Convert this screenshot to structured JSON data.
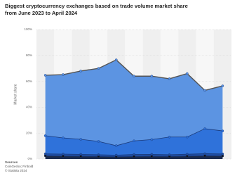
{
  "chart_data": {
    "type": "stacked-area",
    "title": "Biggest cryptocurrency exchanges based on trade volume market share from June 2023 to April 2024",
    "y_label": "Market share",
    "categories": [
      null,
      null,
      null,
      null,
      null,
      null,
      null,
      null,
      null,
      null,
      null
    ],
    "series": [
      {
        "color": "#1b2b4d",
        "values": [
          2.5,
          2.3,
          2.2,
          2,
          1.8,
          2,
          2.2,
          2,
          2.3,
          2.5,
          2.4
        ]
      },
      {
        "color": "#1f4fa6",
        "values": [
          1.5,
          1.5,
          1.4,
          1.3,
          1.2,
          1.5,
          1.4,
          1.3,
          1.4,
          1.6,
          1.5
        ]
      },
      {
        "color": "#2f72da",
        "values": [
          14,
          12.5,
          11.6,
          10.3,
          7.3,
          10.5,
          11.4,
          13.7,
          13.3,
          19.3,
          17.8
        ]
      },
      {
        "color": "#5c94e2",
        "values": [
          46.7,
          48.9,
          52.8,
          56.4,
          66.3,
          50,
          49,
          45,
          49,
          29.6,
          34.8
        ]
      }
    ],
    "ylim": [
      0,
      100
    ],
    "yticks": [
      {
        "value": 0,
        "label": "0%"
      },
      {
        "value": 20,
        "label": "20%"
      },
      {
        "value": 40,
        "label": "40%"
      },
      {
        "value": 60,
        "label": "60%"
      },
      {
        "value": 80,
        "label": "80%"
      },
      {
        "value": 100,
        "label": "100%"
      }
    ],
    "grid": true,
    "source_heading": "Sources",
    "sources": "CoinGecko; Finbold",
    "copyright": "© Statista 2024"
  }
}
